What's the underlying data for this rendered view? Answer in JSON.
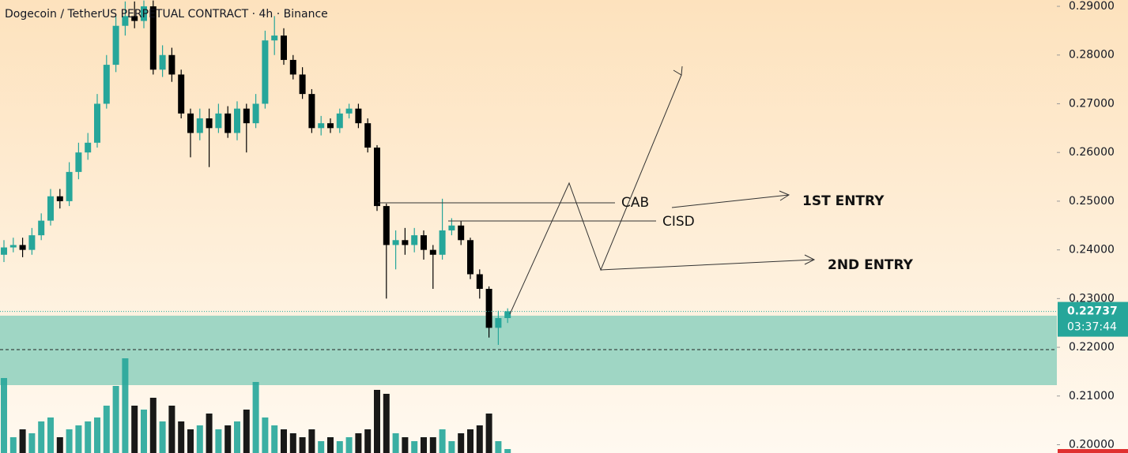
{
  "chart_data": {
    "type": "candlestick",
    "title": "Dogecoin / TetherUS PERPETUAL CONTRACT · 4h · Binance",
    "open": [
      0.239,
      0.2405,
      0.241,
      0.24,
      0.243,
      0.246,
      0.251,
      0.25,
      0.256,
      0.26,
      0.262,
      0.27,
      0.278,
      0.286,
      0.288,
      0.287,
      0.29,
      0.277,
      0.28,
      0.276,
      0.268,
      0.264,
      0.267,
      0.265,
      0.268,
      0.264,
      0.269,
      0.266,
      0.27,
      0.283,
      0.284,
      0.279,
      0.276,
      0.272,
      0.265,
      0.266,
      0.265,
      0.268,
      0.269,
      0.266,
      0.261,
      0.249,
      0.241,
      0.242,
      0.241,
      0.243,
      0.24,
      0.239,
      0.244,
      0.245,
      0.242,
      0.235,
      0.232,
      0.224,
      0.226
    ],
    "high": [
      0.242,
      0.2425,
      0.2425,
      0.2445,
      0.2475,
      0.2525,
      0.2525,
      0.258,
      0.262,
      0.264,
      0.272,
      0.28,
      0.288,
      0.291,
      0.291,
      0.2912,
      0.2912,
      0.282,
      0.2815,
      0.277,
      0.269,
      0.269,
      0.269,
      0.27,
      0.2695,
      0.2705,
      0.27,
      0.272,
      0.285,
      0.288,
      0.2855,
      0.28,
      0.2775,
      0.273,
      0.2675,
      0.267,
      0.269,
      0.27,
      0.27,
      0.267,
      0.2615,
      0.2495,
      0.244,
      0.2445,
      0.2445,
      0.244,
      0.241,
      0.2505,
      0.2465,
      0.246,
      0.2425,
      0.236,
      0.2325,
      0.2275,
      0.228
    ],
    "low": [
      0.2375,
      0.2395,
      0.2385,
      0.239,
      0.242,
      0.245,
      0.2485,
      0.249,
      0.2545,
      0.2585,
      0.261,
      0.269,
      0.2765,
      0.284,
      0.2855,
      0.2855,
      0.276,
      0.2755,
      0.2745,
      0.267,
      0.259,
      0.2625,
      0.257,
      0.264,
      0.263,
      0.2625,
      0.26,
      0.265,
      0.269,
      0.28,
      0.278,
      0.275,
      0.271,
      0.264,
      0.2635,
      0.264,
      0.264,
      0.267,
      0.265,
      0.26,
      0.248,
      0.23,
      0.236,
      0.239,
      0.2395,
      0.238,
      0.232,
      0.238,
      0.243,
      0.241,
      0.234,
      0.23,
      0.222,
      0.2205,
      0.225
    ],
    "close": [
      0.2405,
      0.241,
      0.24,
      0.243,
      0.246,
      0.251,
      0.25,
      0.256,
      0.26,
      0.262,
      0.27,
      0.278,
      0.286,
      0.288,
      0.287,
      0.29,
      0.277,
      0.28,
      0.276,
      0.268,
      0.264,
      0.267,
      0.265,
      0.268,
      0.264,
      0.269,
      0.266,
      0.27,
      0.283,
      0.284,
      0.279,
      0.276,
      0.272,
      0.265,
      0.266,
      0.265,
      0.268,
      0.269,
      0.266,
      0.261,
      0.249,
      0.241,
      0.242,
      0.241,
      0.243,
      0.24,
      0.239,
      0.244,
      0.245,
      0.242,
      0.235,
      0.232,
      0.224,
      0.226,
      0.2274
    ],
    "volume": [
      95,
      20,
      30,
      25,
      40,
      45,
      20,
      30,
      35,
      40,
      45,
      60,
      85,
      120,
      60,
      55,
      70,
      40,
      60,
      40,
      30,
      35,
      50,
      30,
      35,
      40,
      55,
      90,
      45,
      35,
      30,
      25,
      20,
      30,
      15,
      20,
      15,
      20,
      25,
      30,
      80,
      75,
      25,
      20,
      15,
      20,
      20,
      30,
      15,
      25,
      30,
      35,
      50,
      15,
      5
    ],
    "up_color": "#26a69a",
    "down_color": "#000000",
    "ylim": [
      0.1983,
      0.2913
    ],
    "yticks": [
      {
        "value": 0.29,
        "label": "0.29000"
      },
      {
        "value": 0.28,
        "label": "0.28000"
      },
      {
        "value": 0.27,
        "label": "0.27000"
      },
      {
        "value": 0.26,
        "label": "0.26000"
      },
      {
        "value": 0.25,
        "label": "0.25000"
      },
      {
        "value": 0.24,
        "label": "0.24000"
      },
      {
        "value": 0.23,
        "label": "0.23000"
      },
      {
        "value": 0.22,
        "label": "0.22000"
      },
      {
        "value": 0.21,
        "label": "0.21000"
      },
      {
        "value": 0.2,
        "label": "0.20000"
      }
    ],
    "last_price": 0.22737,
    "countdown": "03:37:44",
    "annotations": [
      "CAB",
      "CISD",
      "1ST ENTRY",
      "2ND ENTRY"
    ]
  }
}
